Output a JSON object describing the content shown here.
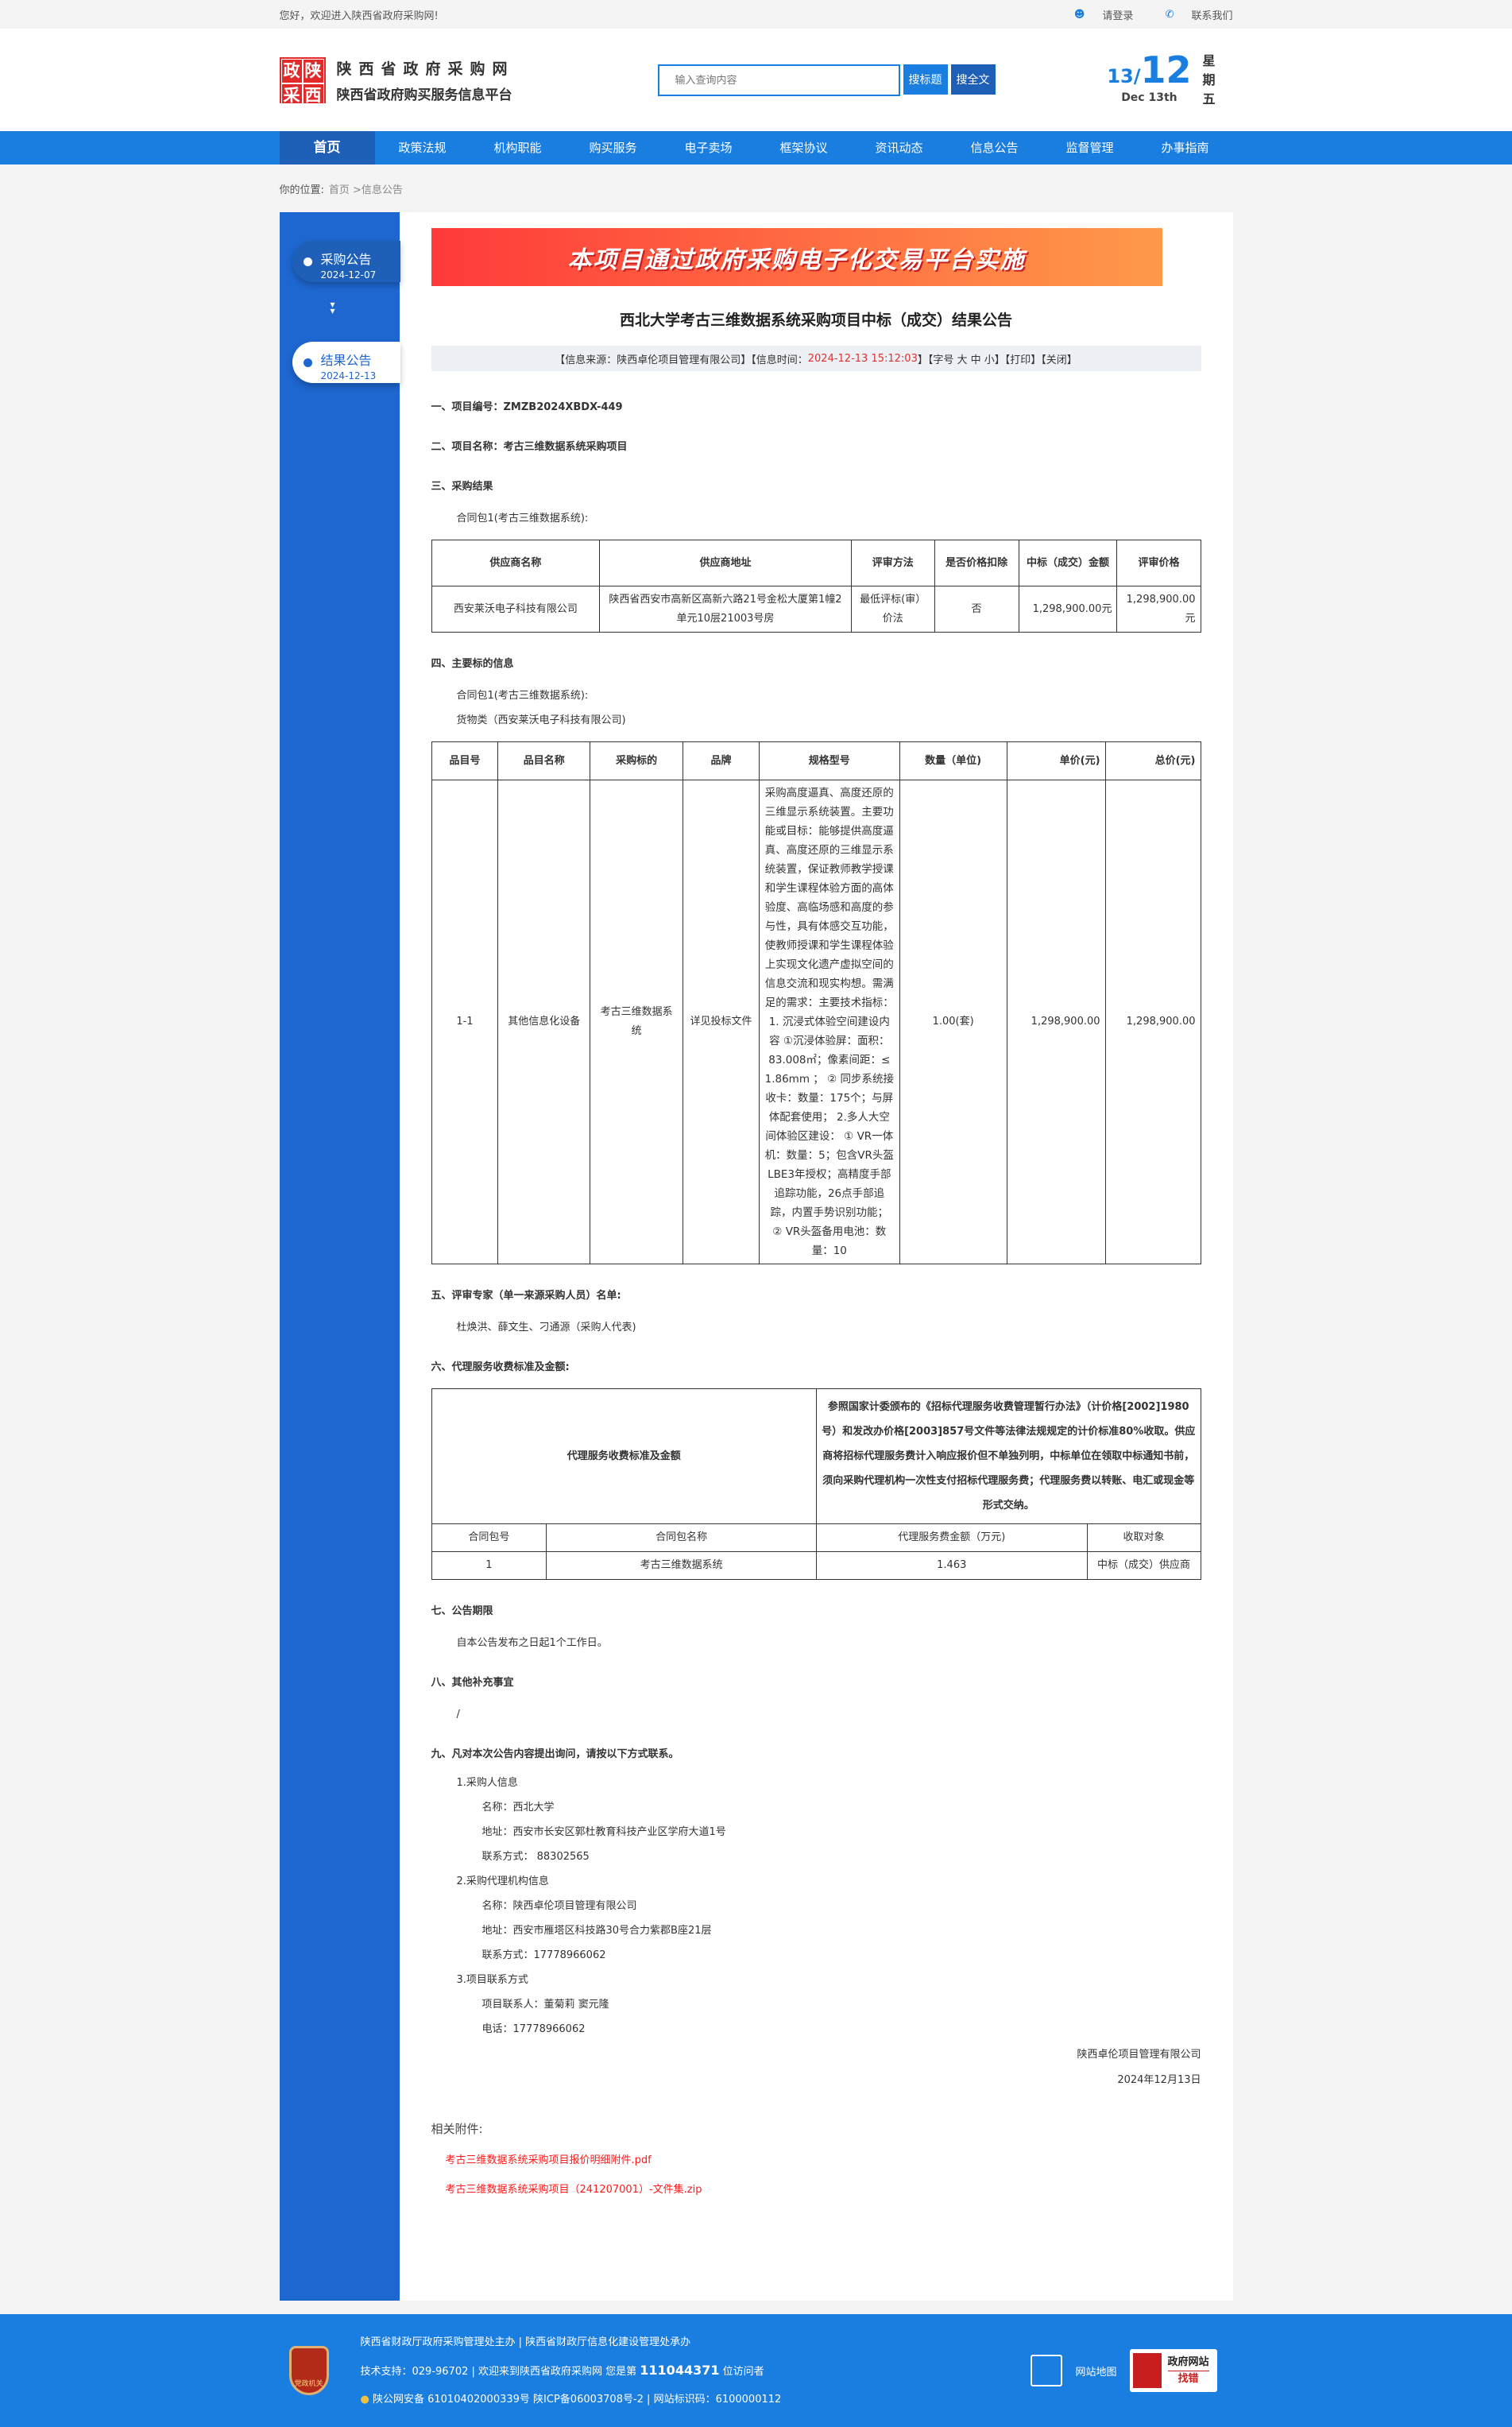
{
  "topbar": {
    "welcome": "您好，欢迎进入陕西省政府采购网!",
    "login": "请登录",
    "contact": "联系我们"
  },
  "header": {
    "logo_chars": [
      "政",
      "陕",
      "采",
      "西"
    ],
    "site_name": "陕西省政府采购网",
    "site_sub": "陕西省政府购买服务信息平台",
    "search_placeholder": "输入查询内容",
    "search_title_btn": "搜标题",
    "search_full_btn": "搜全文",
    "date_day": "13",
    "date_month": "12",
    "date_en": "Dec 13th",
    "weekday": "星期五"
  },
  "nav": [
    "首页",
    "政策法规",
    "机构职能",
    "购买服务",
    "电子卖场",
    "框架协议",
    "资讯动态",
    "信息公告",
    "监督管理",
    "办事指南"
  ],
  "breadcrumb": {
    "label": "你的位置:",
    "path": "首页 >信息公告"
  },
  "sidebar": [
    {
      "title": "采购公告",
      "date": "2024-12-07"
    },
    {
      "title": "结果公告",
      "date": "2024-12-13"
    }
  ],
  "article": {
    "banner": "本项目通过政府采购电子化交易平台实施",
    "title": "西北大学考古三维数据系统采购项目中标（成交）结果公告",
    "info": {
      "source": "【信息来源：陕西卓伦项目管理有限公司】【信息时间：",
      "time": "2024-12-13 15:12:03",
      "tail": "】【字号 大 中 小】【打印】【关闭】"
    },
    "s1": "一、项目编号：ZMZB2024XBDX-449",
    "s2": "二、项目名称：考古三维数据系统采购项目",
    "s3": "三、采购结果",
    "pkg": "合同包1(考古三维数据系统):",
    "t1_head": [
      "供应商名称",
      "供应商地址",
      "评审方法",
      "是否价格扣除",
      "中标（成交）金额",
      "评审价格"
    ],
    "t1_row": [
      "西安莱沃电子科技有限公司",
      "陕西省西安市高新区高新六路21号金松大厦第1幢2单元10层21003号房",
      "最低评标(审）价法",
      "否",
      "1,298,900.00元",
      "1,298,900.00元"
    ],
    "s4": "四、主要标的信息",
    "goods": "货物类（西安莱沃电子科技有限公司)",
    "t2_head": [
      "品目号",
      "品目名称",
      "采购标的",
      "品牌",
      "规格型号",
      "数量（单位)",
      "单价(元)",
      "总价(元)"
    ],
    "t2_row": [
      "1-1",
      "其他信息化设备",
      "考古三维数据系统",
      "详见投标文件",
      "采购高度逼真、高度还原的三维显示系统装置。主要功能或目标：能够提供高度逼真、高度还原的三维显示系统装置，保证教师教学授课和学生课程体验方面的高体验度、高临场感和高度的参与性，具有体感交互功能，使教师授课和学生课程体验上实现文化遗产虚拟空间的信息交流和现实构想。需满足的需求：主要技术指标： 1. 沉浸式体验空间建设内容 ①沉浸体验屏：面积：83.008㎡；像素间距：≤ 1.86mm ； ② 同步系统接收卡：数量：175个；与屏体配套使用； 2.多人大空间体验区建设： ① VR一体机：数量：5；包含VR头盔 LBE3年授权；高精度手部追踪功能，26点手部追踪，内置手势识别功能； ② VR头盔备用电池：数量：10",
      "1.00(套)",
      "1,298,900.00",
      "1,298,900.00"
    ],
    "s5": "五、评审专家（单一来源采购人员）名单:",
    "experts": "杜焕洪、薛文生、刁通源（采购人代表)",
    "s6": "六、代理服务收费标准及金额:",
    "fee_label": "代理服务收费标准及金额",
    "fee_text": "参照国家计委颁布的《招标代理服务收费管理暂行办法》（计价格[2002]1980号）和发改办价格[2003]857号文件等法律法规规定的计价标准80%收取。供应商将招标代理服务费计入响应报价但不单独列明，中标单位在领取中标通知书前，须向采购代理机构一次性支付招标代理服务费；代理服务费以转账、电汇或现金等形式交纳。",
    "t3_head": [
      "合同包号",
      "合同包名称",
      "代理服务费金额（万元)",
      "收取对象"
    ],
    "t3_row": [
      "1",
      "考古三维数据系统",
      "1.463",
      "中标（成交）供应商"
    ],
    "s7": "七、公告期限",
    "s7_text": "自本公告发布之日起1个工作日。",
    "s8": "八、其他补充事宜",
    "s8_text": "/",
    "s9": "九、凡对本次公告内容提出询问，请按以下方式联系。",
    "c1": "1.采购人信息",
    "c1_name": "名称：西北大学",
    "c1_addr": "地址：西安市长安区郭杜教育科技产业区学府大道1号",
    "c1_tel": "联系方式： 88302565",
    "c2": "2.采购代理机构信息",
    "c2_name": "名称：陕西卓伦项目管理有限公司",
    "c2_addr": "地址：西安市雁塔区科技路30号合力紫郡B座21层",
    "c2_tel": "联系方式：17778966062",
    "c3": "3.项目联系方式",
    "c3_person": "项目联系人：董菊莉 窦元隆",
    "c3_tel": "电话：17778966062",
    "sign": "陕西卓伦项目管理有限公司",
    "sign_date": "2024年12月13日",
    "attach_label": "相关附件:",
    "attachments": [
      "考古三维数据系统采购项目报价明细附件.pdf",
      "考古三维数据系统采购项目（241207001）-文件集.zip"
    ]
  },
  "footer": {
    "badge": "党政机关",
    "line1": "陕西省财政厅政府采购管理处主办 | 陕西省财政厅信息化建设管理处承办",
    "line2a": "技术支持：029-96702 | 欢迎来到陕西省政府采购网 您是第",
    "visits": "111044371",
    "line2b": "位访问者",
    "line3": "陕公网安备 61010402000339号   陕ICP备06003708号-2  |  网站标识码：6100000112",
    "sitemap": "网站地图",
    "jc1": "政府网站",
    "jc2": "找错"
  },
  "colors": {
    "primary": "#1a7de0",
    "dark": "#1e5fb8",
    "red": "#ff1a1a"
  }
}
